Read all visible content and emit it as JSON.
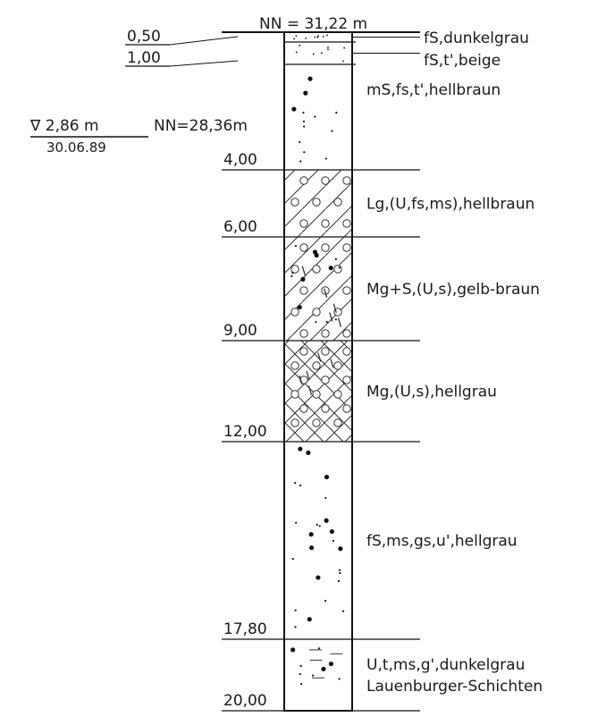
{
  "header": {
    "nn_top": "NN = 31,22 m"
  },
  "groundwater": {
    "depth": "∇ 2,86 m",
    "date": "30.06.89",
    "nn": "NN=28,36m"
  },
  "layers": [
    {
      "id": "l1",
      "top": 0.0,
      "bottom": 0.5,
      "bottom_label": "0,50",
      "pattern": "fine-sand",
      "description": "fS,dunkelgrau"
    },
    {
      "id": "l2",
      "top": 0.5,
      "bottom": 1.0,
      "bottom_label": "1,00",
      "pattern": "fine-sand",
      "description": "fS,t',beige"
    },
    {
      "id": "l3",
      "top": 1.0,
      "bottom": 4.0,
      "bottom_label": "4,00",
      "pattern": "sand",
      "description": "mS,fs,t',hellbraun"
    },
    {
      "id": "l4",
      "top": 4.0,
      "bottom": 6.0,
      "bottom_label": "6,00",
      "pattern": "loam-gravel",
      "description": "Lg,(U,fs,ms),hellbraun"
    },
    {
      "id": "l5",
      "top": 6.0,
      "bottom": 9.0,
      "bottom_label": "9,00",
      "pattern": "marl-sand",
      "description": "Mg+S,(U,s),gelb-braun"
    },
    {
      "id": "l6",
      "top": 9.0,
      "bottom": 12.0,
      "bottom_label": "12,00",
      "pattern": "marl",
      "description": "Mg,(U,s),hellgrau"
    },
    {
      "id": "l7",
      "top": 12.0,
      "bottom": 17.8,
      "bottom_label": "17,80",
      "pattern": "sand",
      "description": "fS,ms,gs,u',hellgrau"
    },
    {
      "id": "l8",
      "top": 17.8,
      "bottom": 20.0,
      "bottom_label": "20,00",
      "pattern": "silt",
      "description": "U,t,ms,g',dunkelgrau",
      "description2": "Lauenburger-Schichten"
    }
  ]
}
